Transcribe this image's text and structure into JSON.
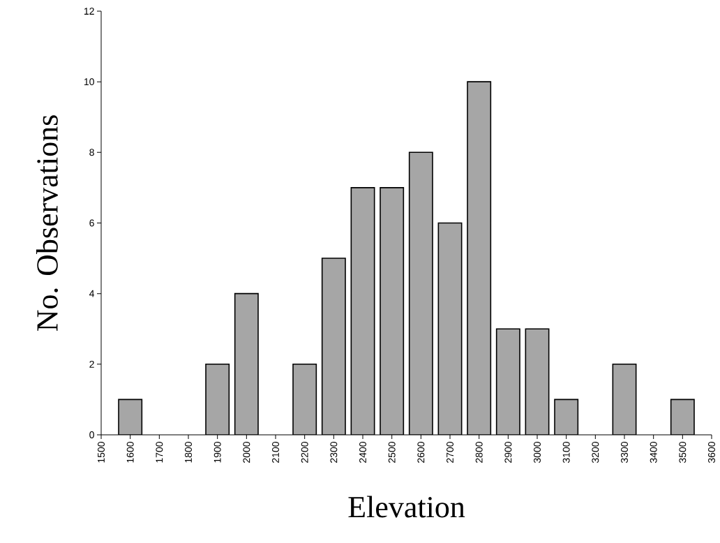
{
  "chart_data": {
    "type": "bar",
    "xlabel": "Elevation",
    "ylabel": "No. Observations",
    "x": [
      1600,
      1900,
      2000,
      2200,
      2300,
      2400,
      2500,
      2600,
      2700,
      2800,
      2900,
      3000,
      3100,
      3300,
      3500
    ],
    "values": [
      1,
      2,
      4,
      2,
      5,
      7,
      7,
      8,
      6,
      10,
      3,
      3,
      1,
      2,
      1
    ],
    "color": "#a6a6a6",
    "xlim": [
      1500,
      3600
    ],
    "xticks": [
      1500,
      1600,
      1700,
      1800,
      1900,
      2000,
      2100,
      2200,
      2300,
      2400,
      2500,
      2600,
      2700,
      2800,
      2900,
      3000,
      3100,
      3200,
      3300,
      3400,
      3500,
      3600
    ],
    "ylim": [
      0,
      12
    ],
    "yticks": [
      0,
      2,
      4,
      6,
      8,
      10,
      12
    ]
  }
}
